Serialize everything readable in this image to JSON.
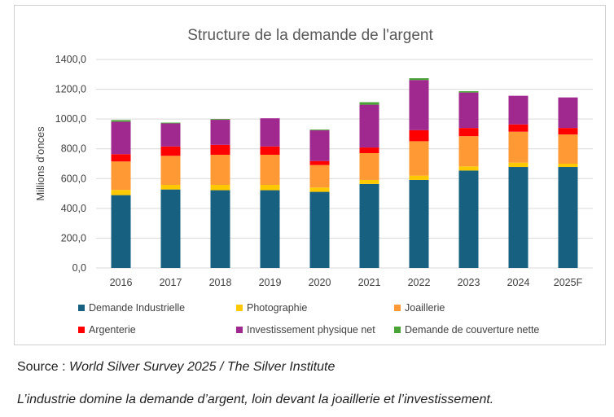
{
  "chart_data": {
    "type": "bar",
    "stacked": true,
    "title": "Structure de la demande de l'argent",
    "ylabel": "Millions d'onces",
    "xlabel": "",
    "ylim": [
      0,
      1400
    ],
    "yticks": [
      "0,0",
      "200,0",
      "400,0",
      "600,0",
      "800,0",
      "1000,0",
      "1200,0",
      "1400,0"
    ],
    "grid": true,
    "legend_position": "bottom",
    "categories": [
      "2016",
      "2017",
      "2018",
      "2019",
      "2020",
      "2021",
      "2022",
      "2023",
      "2024",
      "2025F"
    ],
    "series": [
      {
        "name": "Demande Industrielle",
        "color": "#17607f",
        "values": [
          489,
          527,
          522,
          522,
          511,
          564,
          591,
          654,
          678,
          678
        ]
      },
      {
        "name": "Photographie",
        "color": "#ffc900",
        "values": [
          35,
          31,
          36,
          36,
          29,
          27,
          29,
          28,
          29,
          22
        ]
      },
      {
        "name": "Joaillerie",
        "color": "#ff9933",
        "values": [
          191,
          195,
          202,
          202,
          151,
          180,
          231,
          203,
          208,
          196
        ]
      },
      {
        "name": "Argenterie",
        "color": "#ff0000",
        "values": [
          49,
          63,
          67,
          56,
          27,
          38,
          74,
          55,
          49,
          44
        ]
      },
      {
        "name": "Investissement physique net",
        "color": "#a0298f",
        "values": [
          218,
          155,
          168,
          189,
          206,
          287,
          337,
          238,
          192,
          205
        ]
      },
      {
        "name": "Demande de couverture nette",
        "color": "#4aa336",
        "values": [
          11,
          5,
          5,
          0,
          5,
          17,
          12,
          9,
          0,
          0
        ]
      }
    ]
  },
  "captions": {
    "source_label": "Source : ",
    "source_text": "World Silver Survey 2025 / The Silver Institute",
    "summary": "L’industrie domine la demande d’argent, loin devant la joaillerie et l’investissement."
  }
}
